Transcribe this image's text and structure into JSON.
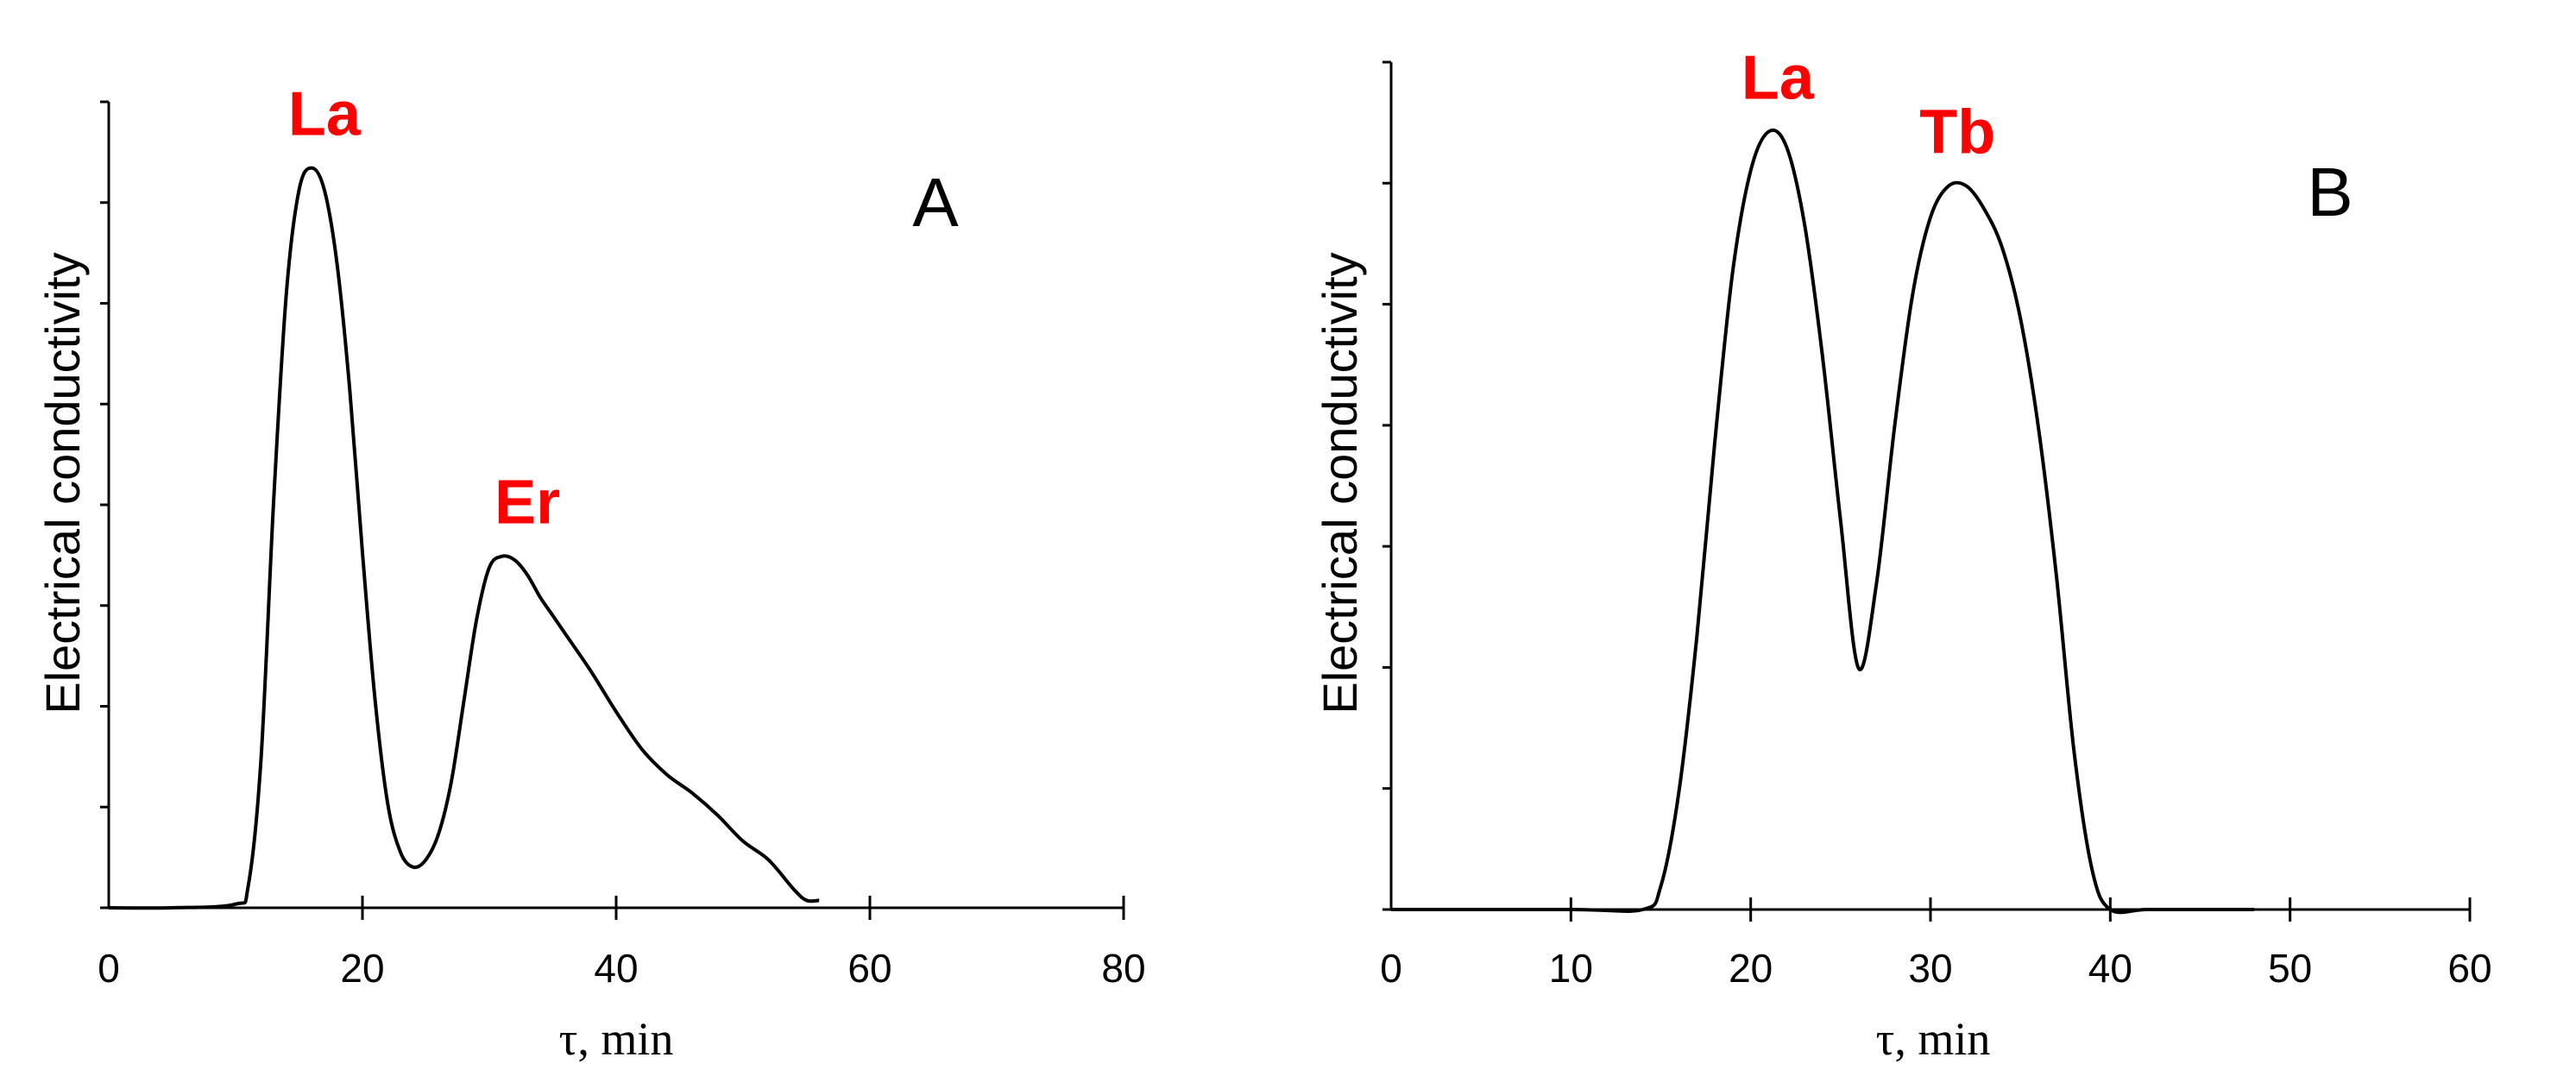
{
  "colors": {
    "peak_label": "#ff0000",
    "curve": "#000000",
    "axis": "#000000"
  },
  "chart_data": [
    {
      "type": "line",
      "panel_label": "A",
      "xlabel": "τ, min",
      "ylabel": "Electrical conductivity",
      "x_ticks": [
        "0",
        "20",
        "40",
        "60",
        "80"
      ],
      "xlim": [
        0,
        80
      ],
      "ylim": [
        0,
        1
      ],
      "y_ticks_labeled": false,
      "series": [
        {
          "x": [
            0,
            5,
            10,
            11,
            12,
            13,
            14,
            15,
            16,
            17,
            18,
            19,
            20,
            21,
            22,
            23,
            24,
            25,
            26,
            27,
            28,
            29,
            30,
            31,
            32,
            33,
            34,
            35,
            36,
            38,
            40,
            42,
            44,
            46,
            48,
            50,
            52,
            54,
            55,
            56
          ],
          "y": [
            0,
            0,
            0.005,
            0.03,
            0.2,
            0.55,
            0.83,
            0.97,
            1.0,
            0.97,
            0.87,
            0.7,
            0.48,
            0.28,
            0.14,
            0.075,
            0.055,
            0.065,
            0.1,
            0.17,
            0.28,
            0.39,
            0.46,
            0.475,
            0.47,
            0.45,
            0.42,
            0.395,
            0.37,
            0.32,
            0.265,
            0.215,
            0.18,
            0.155,
            0.125,
            0.09,
            0.065,
            0.025,
            0.01,
            0.01
          ]
        }
      ],
      "annotations": [
        {
          "text": "La",
          "x": 17,
          "y": 1.0
        },
        {
          "text": "Er",
          "x": 33,
          "y": 0.475
        }
      ]
    },
    {
      "type": "line",
      "panel_label": "B",
      "xlabel": "τ, min",
      "ylabel": "Electrical conductivity",
      "x_ticks": [
        "0",
        "10",
        "20",
        "30",
        "40",
        "50",
        "60"
      ],
      "xlim": [
        0,
        60
      ],
      "ylim": [
        0,
        1
      ],
      "y_ticks_labeled": false,
      "series": [
        {
          "x": [
            0,
            10,
            14,
            15,
            16,
            17,
            18,
            19,
            20,
            21,
            22,
            23,
            24,
            25,
            26,
            27,
            28,
            29,
            30,
            31,
            32,
            33,
            34,
            35,
            36,
            37,
            38,
            39,
            40,
            42,
            45,
            48
          ],
          "y": [
            0,
            0,
            0,
            0.03,
            0.15,
            0.35,
            0.6,
            0.82,
            0.95,
            1.0,
            0.98,
            0.88,
            0.71,
            0.5,
            0.31,
            0.42,
            0.62,
            0.79,
            0.89,
            0.93,
            0.93,
            0.9,
            0.85,
            0.76,
            0.62,
            0.43,
            0.2,
            0.05,
            0,
            0,
            0,
            0
          ]
        }
      ],
      "annotations": [
        {
          "text": "La",
          "x": 21.5,
          "y": 1.0
        },
        {
          "text": "Tb",
          "x": 31.5,
          "y": 0.93
        }
      ]
    }
  ]
}
